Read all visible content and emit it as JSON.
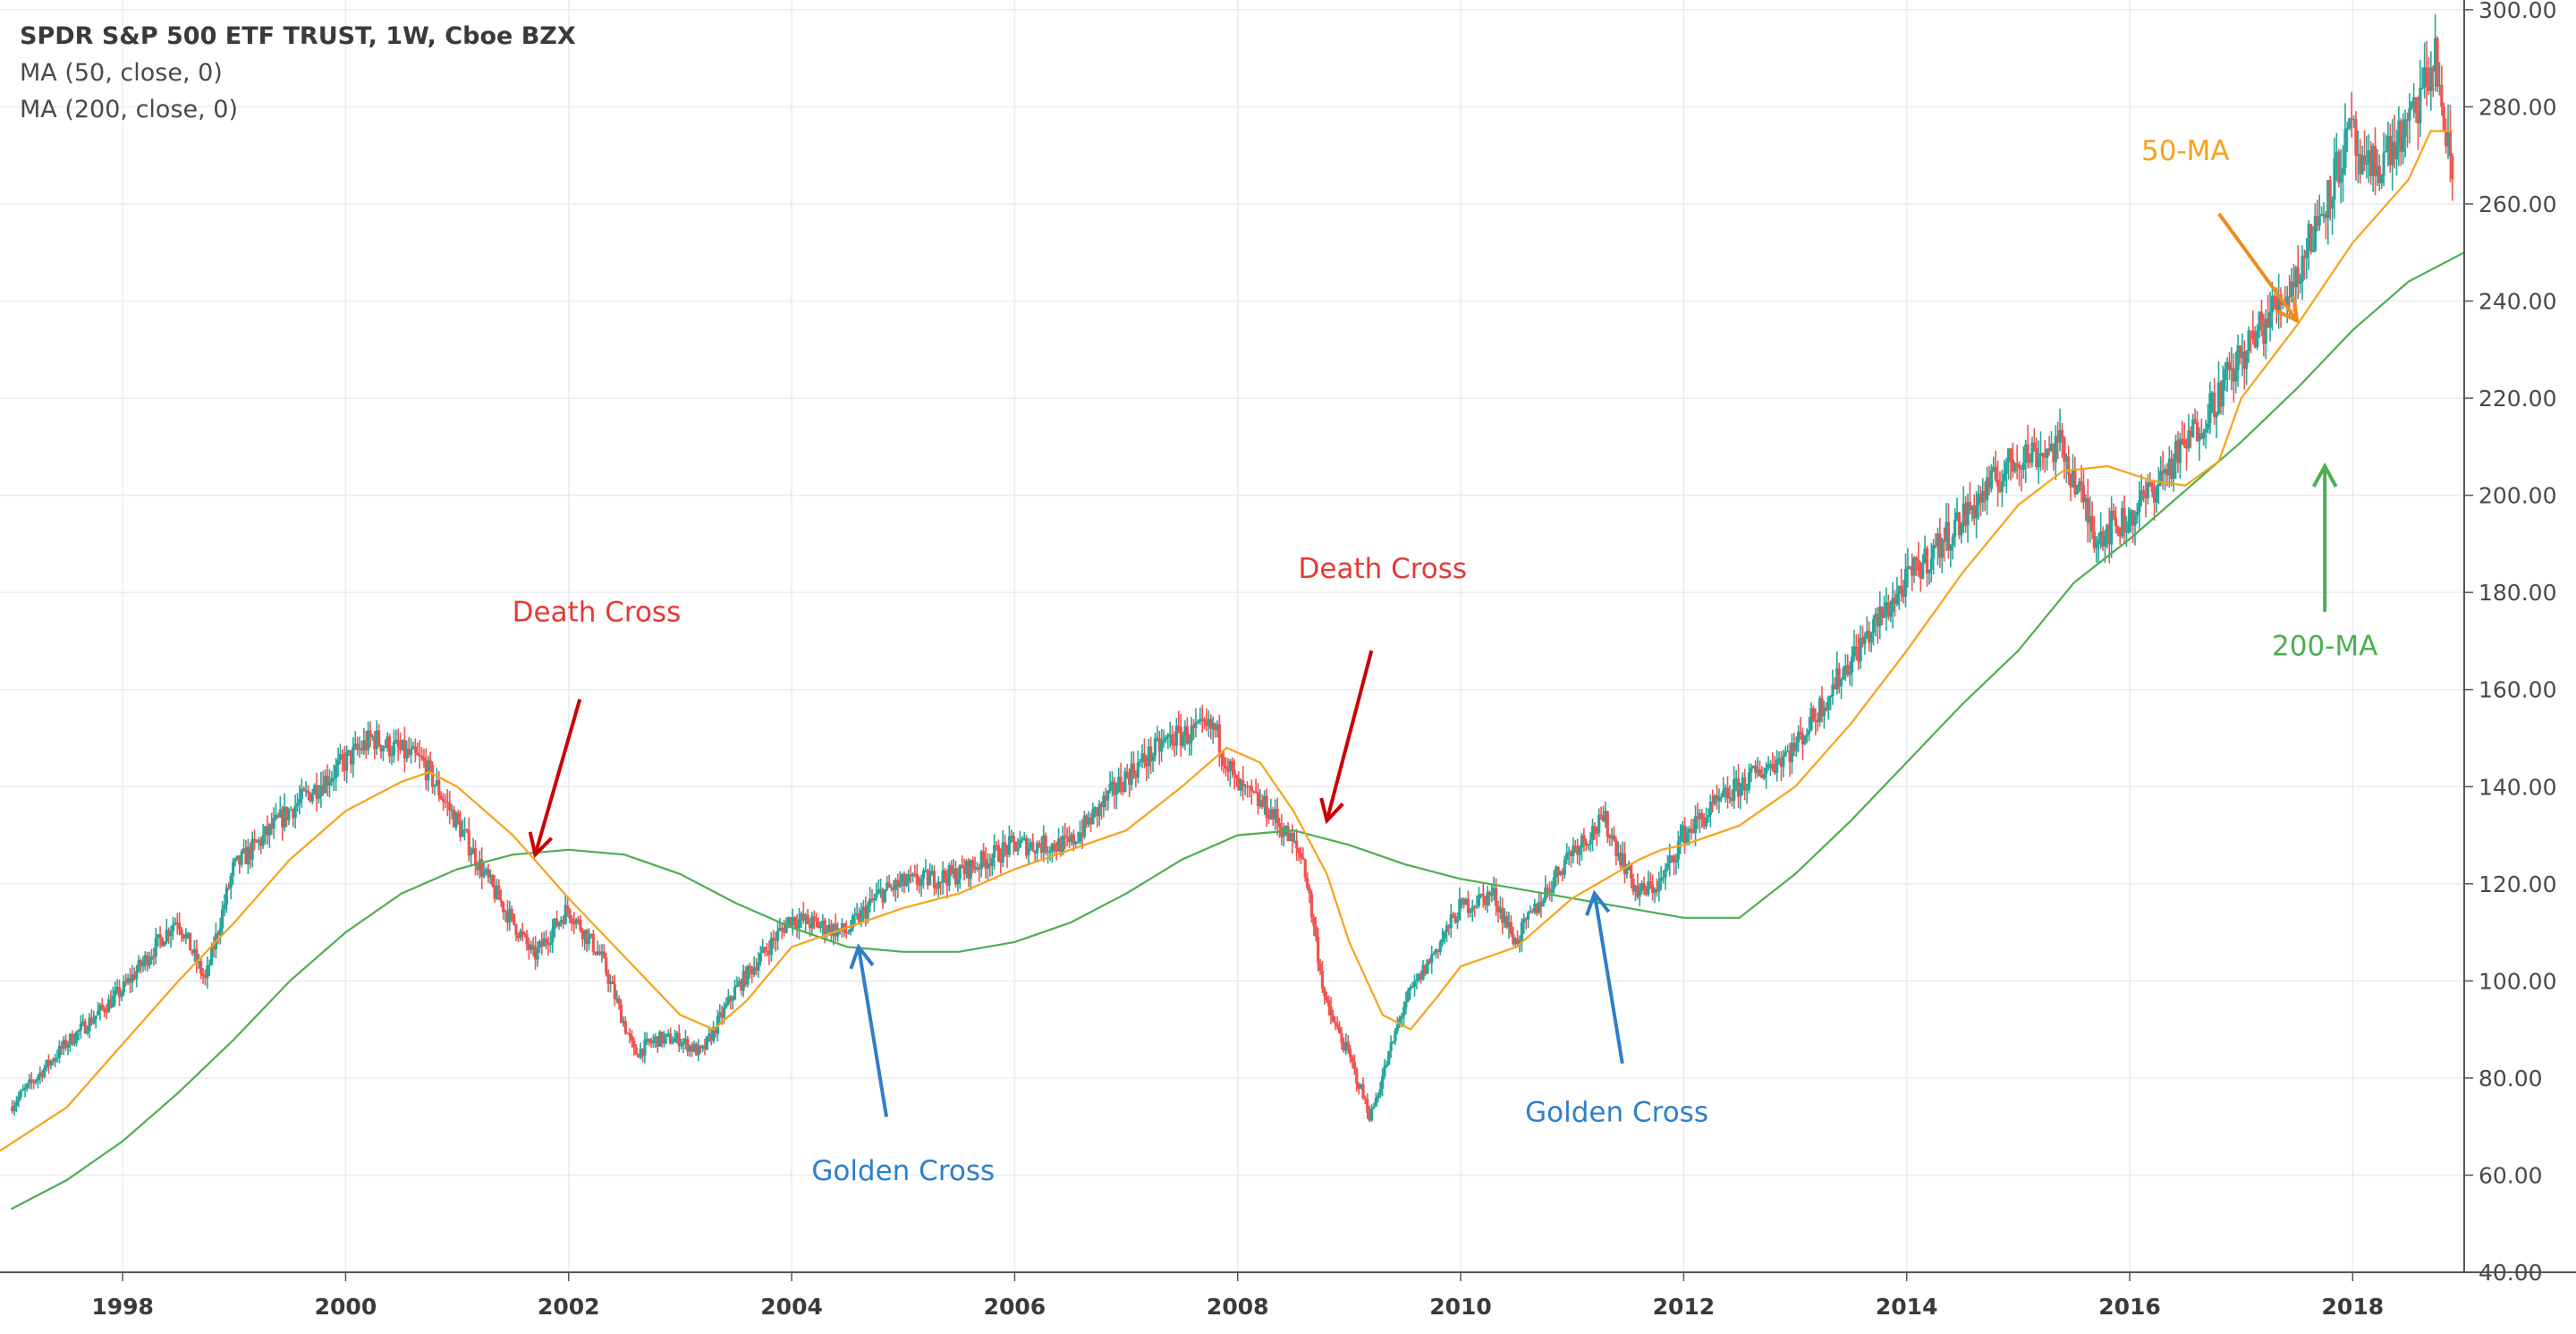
{
  "legend": {
    "title": "SPDR S&P 500 ETF TRUST, 1W, Cboe BZX",
    "ma50": "MA (50, close, 0)",
    "ma200": "MA (200, close, 0)"
  },
  "colors": {
    "up": "#26a69a",
    "down": "#ef5350",
    "ma50": "#f7a21b",
    "ma200": "#4caf50",
    "death": "#cc0000",
    "death_text": "#e53935",
    "golden": "#2f7fc8",
    "grid": "#e8ecf2",
    "axis": "#555555"
  },
  "chart_data": {
    "type": "line",
    "title": "SPDR S&P 500 ETF TRUST, 1W, Cboe BZX",
    "xlabel": "",
    "ylabel": "",
    "xlim": [
      1996.9,
      2019.0
    ],
    "ylim": [
      40,
      302
    ],
    "x_ticks": [
      "1998",
      "2000",
      "2002",
      "2004",
      "2006",
      "2008",
      "2010",
      "2012",
      "2014",
      "2016",
      "2018"
    ],
    "y_ticks": [
      "40.00",
      "60.00",
      "80.00",
      "100.00",
      "120.00",
      "140.00",
      "160.00",
      "180.00",
      "200.00",
      "220.00",
      "240.00",
      "260.00",
      "280.00",
      "300.00"
    ],
    "grid": true,
    "price_series": {
      "name": "SPDR S&P 500 ETF TRUST",
      "x": [
        1997.0,
        1997.5,
        1998.0,
        1998.5,
        1998.75,
        1999.0,
        1999.5,
        2000.0,
        2000.25,
        2000.7,
        2001.0,
        2001.3,
        2001.7,
        2002.0,
        2002.3,
        2002.6,
        2002.8,
        2003.0,
        2003.2,
        2003.5,
        2004.0,
        2004.5,
        2004.8,
        2005.0,
        2005.5,
        2006.0,
        2006.5,
        2007.0,
        2007.4,
        2007.8,
        2008.0,
        2008.3,
        2008.6,
        2008.8,
        2009.0,
        2009.2,
        2009.5,
        2010.0,
        2010.3,
        2010.5,
        2011.0,
        2011.3,
        2011.6,
        2011.8,
        2012.0,
        2012.5,
        2013.0,
        2013.5,
        2014.0,
        2014.5,
        2015.0,
        2015.4,
        2015.7,
        2016.0,
        2016.5,
        2017.0,
        2017.5,
        2018.0,
        2018.1,
        2018.5,
        2018.75,
        2018.9
      ],
      "values": [
        74,
        87,
        98,
        113,
        100,
        123,
        135,
        145,
        150,
        145,
        133,
        120,
        105,
        115,
        105,
        85,
        88,
        88,
        85,
        98,
        113,
        110,
        118,
        120,
        122,
        128,
        128,
        142,
        150,
        152,
        140,
        135,
        125,
        95,
        85,
        72,
        95,
        115,
        118,
        108,
        127,
        133,
        118,
        120,
        130,
        140,
        148,
        166,
        182,
        195,
        208,
        210,
        192,
        195,
        210,
        228,
        245,
        275,
        265,
        275,
        290,
        265
      ]
    },
    "series": [
      {
        "name": "MA (50, close, 0)",
        "x": [
          1996.9,
          1997.5,
          1998.0,
          1998.5,
          1999.0,
          1999.5,
          2000.0,
          2000.5,
          2000.75,
          2001.0,
          2001.5,
          2002.0,
          2002.5,
          2003.0,
          2003.3,
          2003.6,
          2004.0,
          2004.5,
          2005.0,
          2005.5,
          2006.0,
          2006.5,
          2007.0,
          2007.5,
          2007.9,
          2008.2,
          2008.5,
          2008.8,
          2009.0,
          2009.3,
          2009.55,
          2009.8,
          2010.0,
          2010.5,
          2011.0,
          2011.3,
          2011.6,
          2011.8,
          2012.0,
          2012.5,
          2013.0,
          2013.5,
          2014.0,
          2014.5,
          2015.0,
          2015.4,
          2015.8,
          2016.2,
          2016.5,
          2016.8,
          2017.0,
          2017.5,
          2018.0,
          2018.5,
          2018.7,
          2018.9
        ],
        "values": [
          65,
          74,
          87,
          100,
          112,
          125,
          135,
          141,
          143,
          140,
          130,
          117,
          105,
          93,
          90,
          96,
          107,
          111,
          115,
          118,
          123,
          127,
          131,
          140,
          148,
          145,
          135,
          122,
          108,
          93,
          90,
          97,
          103,
          107,
          117,
          121,
          125,
          127,
          128,
          132,
          140,
          153,
          168,
          184,
          198,
          205,
          206,
          203,
          202,
          207,
          220,
          235,
          252,
          265,
          275,
          275
        ]
      },
      {
        "name": "MA (200, close, 0)",
        "x": [
          1997.0,
          1997.5,
          1998.0,
          1998.5,
          1999.0,
          1999.5,
          2000.0,
          2000.5,
          2001.0,
          2001.5,
          2002.0,
          2002.5,
          2003.0,
          2003.5,
          2004.0,
          2004.5,
          2005.0,
          2005.5,
          2006.0,
          2006.5,
          2007.0,
          2007.5,
          2008.0,
          2008.5,
          2009.0,
          2009.5,
          2010.0,
          2010.5,
          2011.0,
          2011.5,
          2012.0,
          2012.5,
          2013.0,
          2013.5,
          2014.0,
          2014.5,
          2015.0,
          2015.5,
          2016.0,
          2016.5,
          2017.0,
          2017.5,
          2018.0,
          2018.5,
          2019.0
        ],
        "values": [
          53,
          59,
          67,
          77,
          88,
          100,
          110,
          118,
          123,
          126,
          127,
          126,
          122,
          116,
          111,
          107,
          106,
          106,
          108,
          112,
          118,
          125,
          130,
          131,
          128,
          124,
          121,
          119,
          117,
          115,
          113,
          113,
          122,
          133,
          145,
          157,
          168,
          182,
          191,
          201,
          211,
          222,
          234,
          244,
          250
        ]
      }
    ],
    "annotations": [
      {
        "label": "Death Cross",
        "x": 2001.7,
        "y": 126
      },
      {
        "label": "Death Cross",
        "x": 2008.8,
        "y": 133
      },
      {
        "label": "Golden Cross",
        "x": 2004.6,
        "y": 107
      },
      {
        "label": "Golden Cross",
        "x": 2011.2,
        "y": 118
      },
      {
        "label": "50-MA",
        "x": 2017.5,
        "y": 236
      },
      {
        "label": "200-MA",
        "x": 2017.75,
        "y": 206
      }
    ]
  }
}
